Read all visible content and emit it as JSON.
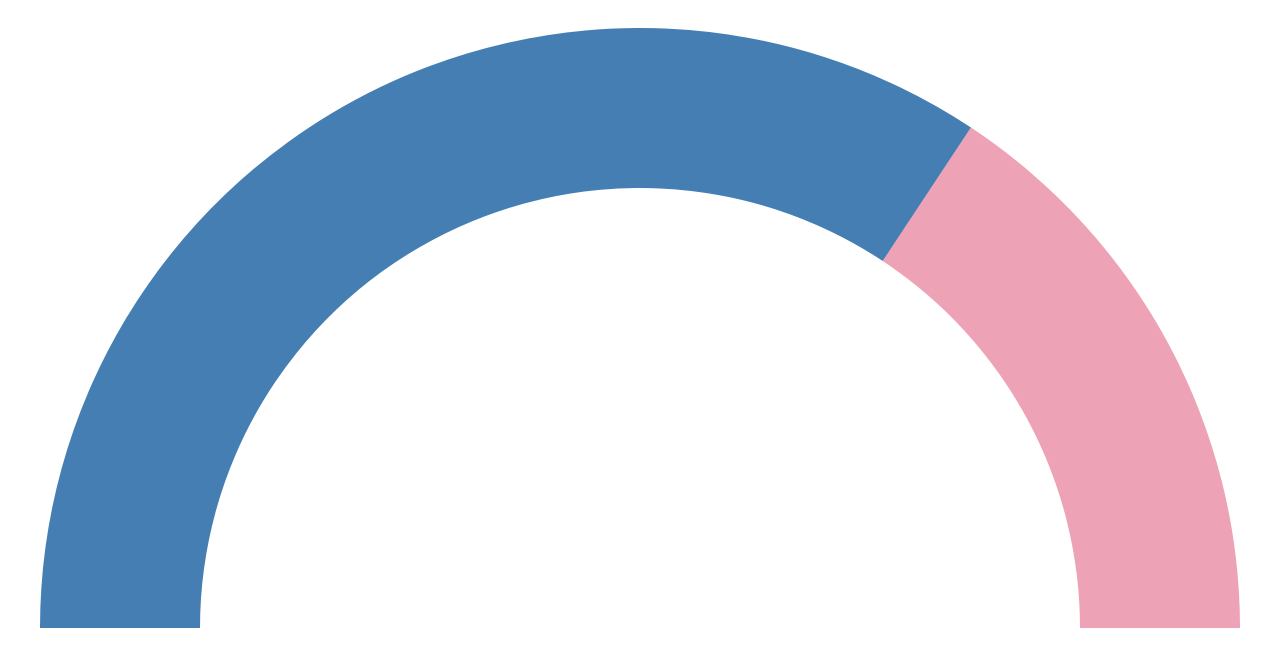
{
  "chart_data": {
    "type": "pie",
    "variant": "half-donut",
    "title": "",
    "start_angle_deg": 180,
    "end_angle_deg": 0,
    "series": [
      {
        "value": 68.6,
        "color": "#457eb3"
      },
      {
        "value": 31.4,
        "color": "#eda2b5"
      }
    ],
    "legend": "none",
    "grid": false
  },
  "colors": {
    "background": "#ffffff"
  }
}
